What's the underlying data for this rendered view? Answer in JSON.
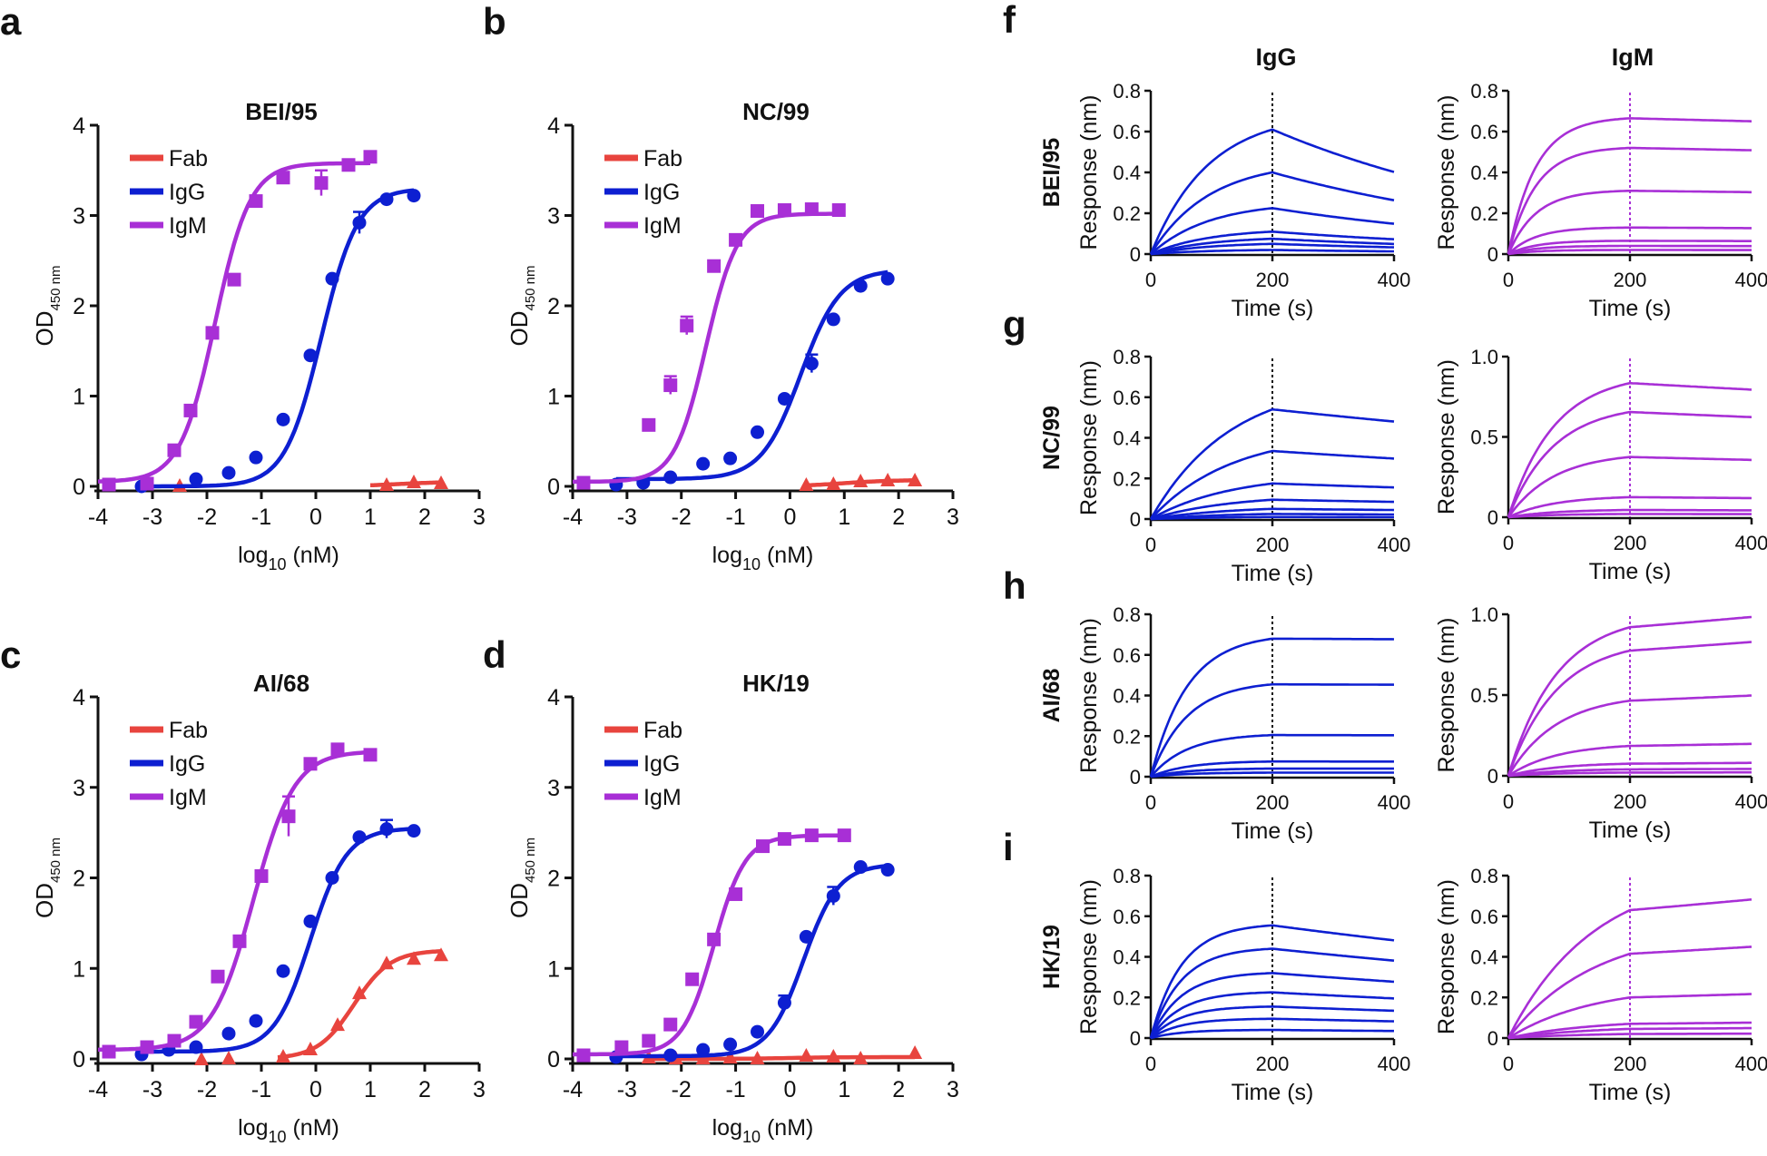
{
  "colors": {
    "fab": "#e8443e",
    "igg": "#0d1fd1",
    "igm": "#a82fd6",
    "axis": "#111111"
  },
  "panel_letters": {
    "a": "a",
    "b": "b",
    "c": "c",
    "d": "d",
    "f": "f",
    "g": "g",
    "h": "h",
    "i": "i"
  },
  "bli_column_titles": {
    "igg": "IgG",
    "igm": "IgM"
  },
  "chart_data": [
    {
      "id": "a",
      "type": "scatter",
      "title": "BEI/95",
      "xlabel": "log10 (nM)",
      "ylabel": "OD450 nm",
      "xlim": [
        -4,
        3
      ],
      "ylim": [
        0,
        4
      ],
      "xticks": [
        "-4",
        "-3",
        "-2",
        "-1",
        "0",
        "1",
        "2",
        "3"
      ],
      "yticks": [
        "0",
        "1",
        "2",
        "3",
        "4"
      ],
      "legend": [
        "Fab",
        "IgG",
        "IgM"
      ],
      "series": [
        {
          "name": "Fab",
          "marker": "triangle",
          "x": [
            -2.5,
            1.3,
            1.8,
            2.3
          ],
          "y": [
            0.0,
            0.01,
            0.04,
            0.03
          ],
          "fit": {
            "bottom": 0.0,
            "top": 0.05,
            "ec50": 1.5,
            "hill": 1.0,
            "from": 1.0,
            "to": 2.3
          }
        },
        {
          "name": "IgG",
          "marker": "circle",
          "x": [
            -3.2,
            -2.2,
            -1.6,
            -1.1,
            -0.6,
            -0.1,
            0.3,
            0.8,
            1.3,
            1.8
          ],
          "y": [
            0.0,
            0.08,
            0.15,
            0.32,
            0.74,
            1.45,
            2.3,
            2.92,
            3.18,
            3.22
          ],
          "err": [
            0,
            0,
            0,
            0,
            0,
            0,
            0,
            0.12,
            0,
            0
          ],
          "fit": {
            "bottom": 0.0,
            "top": 3.3,
            "ec50": 0.1,
            "hill": 1.3,
            "from": -3.2,
            "to": 1.8
          }
        },
        {
          "name": "IgM",
          "marker": "square",
          "x": [
            -3.8,
            -3.1,
            -2.6,
            -2.3,
            -1.9,
            -1.5,
            -1.1,
            -0.6,
            0.1,
            0.6,
            1.0
          ],
          "y": [
            0.02,
            0.03,
            0.4,
            0.84,
            1.7,
            2.29,
            3.16,
            3.42,
            3.36,
            3.56,
            3.65
          ],
          "err": [
            0,
            0,
            0,
            0,
            0,
            0,
            0,
            0,
            0.14,
            0,
            0
          ],
          "fit": {
            "bottom": 0.05,
            "top": 3.58,
            "ec50": -1.85,
            "hill": 1.35,
            "from": -4,
            "to": 1.0
          }
        }
      ]
    },
    {
      "id": "b",
      "type": "scatter",
      "title": "NC/99",
      "xlabel": "log10 (nM)",
      "ylabel": "OD450 nm",
      "xlim": [
        -4,
        3
      ],
      "ylim": [
        0,
        4
      ],
      "xticks": [
        "-4",
        "-3",
        "-2",
        "-1",
        "0",
        "1",
        "2",
        "3"
      ],
      "yticks": [
        "0",
        "1",
        "2",
        "3",
        "4"
      ],
      "legend": [
        "Fab",
        "IgG",
        "IgM"
      ],
      "series": [
        {
          "name": "Fab",
          "marker": "triangle",
          "x": [
            0.3,
            0.8,
            1.3,
            1.8,
            2.3
          ],
          "y": [
            0.01,
            0.02,
            0.05,
            0.06,
            0.06
          ],
          "fit": {
            "bottom": 0.0,
            "top": 0.07,
            "ec50": 1.0,
            "hill": 1.0,
            "from": 0.3,
            "to": 2.3
          }
        },
        {
          "name": "IgG",
          "marker": "circle",
          "x": [
            -3.2,
            -2.7,
            -2.2,
            -1.6,
            -1.1,
            -0.6,
            -0.1,
            0.4,
            0.8,
            1.3,
            1.8
          ],
          "y": [
            0.02,
            0.04,
            0.1,
            0.25,
            0.31,
            0.6,
            0.97,
            1.36,
            1.85,
            2.22,
            2.3
          ],
          "err": [
            0,
            0,
            0,
            0,
            0,
            0,
            0,
            0.1,
            0,
            0,
            0
          ],
          "fit": {
            "bottom": 0.08,
            "top": 2.4,
            "ec50": 0.2,
            "hill": 1.2,
            "from": -3.2,
            "to": 1.8
          }
        },
        {
          "name": "IgM",
          "marker": "square",
          "x": [
            -3.8,
            -2.6,
            -2.2,
            -1.9,
            -1.4,
            -1.0,
            -0.6,
            -0.1,
            0.4,
            0.9
          ],
          "y": [
            0.04,
            0.68,
            1.12,
            1.78,
            2.44,
            2.73,
            3.05,
            3.06,
            3.07,
            3.06
          ],
          "err": [
            0,
            0,
            0.1,
            0.1,
            0,
            0,
            0,
            0,
            0,
            0
          ],
          "fit": {
            "bottom": 0.05,
            "top": 3.02,
            "ec50": -1.55,
            "hill": 1.5,
            "from": -4,
            "to": 0.9
          }
        }
      ]
    },
    {
      "id": "c",
      "type": "scatter",
      "title": "AI/68",
      "xlabel": "log10 (nM)",
      "ylabel": "OD450 nm",
      "xlim": [
        -4,
        3
      ],
      "ylim": [
        0,
        4
      ],
      "xticks": [
        "-4",
        "-3",
        "-2",
        "-1",
        "0",
        "1",
        "2",
        "3"
      ],
      "yticks": [
        "0",
        "1",
        "2",
        "3",
        "4"
      ],
      "legend": [
        "Fab",
        "IgG",
        "IgM"
      ],
      "series": [
        {
          "name": "Fab",
          "marker": "triangle",
          "x": [
            -2.1,
            -1.6,
            -0.6,
            -0.1,
            0.4,
            0.8,
            1.3,
            1.8,
            2.3
          ],
          "y": [
            -0.01,
            0.0,
            0.02,
            0.1,
            0.37,
            0.72,
            1.05,
            1.1,
            1.14
          ],
          "fit": {
            "bottom": 0.0,
            "top": 1.2,
            "ec50": 0.7,
            "hill": 1.3,
            "from": -0.7,
            "to": 2.3
          }
        },
        {
          "name": "IgG",
          "marker": "circle",
          "x": [
            -3.2,
            -2.7,
            -2.2,
            -1.6,
            -1.1,
            -0.6,
            -0.1,
            0.3,
            0.8,
            1.3,
            1.8
          ],
          "y": [
            0.05,
            0.1,
            0.13,
            0.28,
            0.42,
            0.97,
            1.52,
            2.0,
            2.45,
            2.54,
            2.52
          ],
          "err": [
            0,
            0,
            0,
            0,
            0,
            0,
            0,
            0,
            0,
            0.1,
            0
          ],
          "fit": {
            "bottom": 0.08,
            "top": 2.55,
            "ec50": -0.1,
            "hill": 1.3,
            "from": -3.2,
            "to": 1.8
          }
        },
        {
          "name": "IgM",
          "marker": "square",
          "x": [
            -3.8,
            -3.1,
            -2.6,
            -2.2,
            -1.8,
            -1.4,
            -1.0,
            -0.5,
            -0.1,
            0.4,
            1.0
          ],
          "y": [
            0.08,
            0.13,
            0.2,
            0.41,
            0.91,
            1.3,
            2.02,
            2.68,
            3.26,
            3.42,
            3.36
          ],
          "err": [
            0,
            0,
            0,
            0,
            0,
            0,
            0,
            0.22,
            0,
            0,
            0
          ],
          "fit": {
            "bottom": 0.1,
            "top": 3.4,
            "ec50": -1.15,
            "hill": 1.15,
            "from": -4,
            "to": 1.0
          }
        }
      ]
    },
    {
      "id": "d",
      "type": "scatter",
      "title": "HK/19",
      "xlabel": "log10 (nM)",
      "ylabel": "OD450 nm",
      "xlim": [
        -4,
        3
      ],
      "ylim": [
        0,
        4
      ],
      "xticks": [
        "-4",
        "-3",
        "-2",
        "-1",
        "0",
        "1",
        "2",
        "3"
      ],
      "yticks": [
        "0",
        "1",
        "2",
        "3",
        "4"
      ],
      "legend": [
        "Fab",
        "IgG",
        "IgM"
      ],
      "series": [
        {
          "name": "Fab",
          "marker": "triangle",
          "x": [
            -2.6,
            -2.1,
            -1.6,
            -1.1,
            -0.6,
            0.3,
            0.8,
            1.3,
            2.3
          ],
          "y": [
            0.01,
            0.0,
            0.0,
            0.01,
            0.0,
            0.03,
            0.02,
            0.0,
            0.06
          ],
          "fit": {
            "bottom": 0.0,
            "top": 0.02,
            "ec50": 0.0,
            "hill": 1.0,
            "from": -2.6,
            "to": 2.3
          }
        },
        {
          "name": "IgG",
          "marker": "circle",
          "x": [
            -3.2,
            -2.2,
            -1.6,
            -1.1,
            -0.6,
            -0.1,
            0.3,
            0.8,
            1.3,
            1.8
          ],
          "y": [
            0.02,
            0.04,
            0.1,
            0.16,
            0.3,
            0.62,
            1.35,
            1.8,
            2.12,
            2.09
          ],
          "err": [
            0,
            0,
            0,
            0,
            0,
            0.08,
            0,
            0.1,
            0,
            0
          ],
          "fit": {
            "bottom": 0.03,
            "top": 2.15,
            "ec50": 0.25,
            "hill": 1.35,
            "from": -3.2,
            "to": 1.8
          }
        },
        {
          "name": "IgM",
          "marker": "square",
          "x": [
            -3.8,
            -3.1,
            -2.6,
            -2.2,
            -1.8,
            -1.4,
            -1.0,
            -0.5,
            -0.1,
            0.4,
            1.0
          ],
          "y": [
            0.04,
            0.13,
            0.2,
            0.38,
            0.88,
            1.32,
            1.82,
            2.35,
            2.43,
            2.47,
            2.47
          ],
          "err": [
            0,
            0,
            0,
            0,
            0,
            0,
            0,
            0.06,
            0,
            0,
            0
          ],
          "fit": {
            "bottom": 0.05,
            "top": 2.47,
            "ec50": -1.4,
            "hill": 1.5,
            "from": -4,
            "to": 1.0
          }
        }
      ]
    },
    {
      "id": "f-igg",
      "type": "line",
      "row_label": "BEI/95",
      "xlabel": "Time (s)",
      "ylabel": "Response (nm)",
      "xlim": [
        0,
        400
      ],
      "ylim": [
        0,
        0.8
      ],
      "xticks": [
        "0",
        "200",
        "400"
      ],
      "yticks": [
        "0",
        "0.2",
        "0.4",
        "0.6",
        "0.8"
      ],
      "series_color": "igg",
      "dissociation_start": 200,
      "kon_tau": 95,
      "koff_tau": 480,
      "plateaus": [
        0.61,
        0.4,
        0.225,
        0.11,
        0.075,
        0.05,
        0.02
      ]
    },
    {
      "id": "f-igm",
      "type": "line",
      "row_label": "",
      "xlabel": "Time (s)",
      "ylabel": "Response (nm)",
      "xlim": [
        0,
        400
      ],
      "ylim": [
        0,
        0.8
      ],
      "xticks": [
        "0",
        "200",
        "400"
      ],
      "yticks": [
        "0",
        "0.2",
        "0.4",
        "0.6",
        "0.8"
      ],
      "series_color": "igm",
      "dissociation_start": 200,
      "kon_tau": 45,
      "koff_tau": 9000,
      "plateaus": [
        0.665,
        0.52,
        0.31,
        0.13,
        0.065,
        0.04,
        0.02
      ]
    },
    {
      "id": "g-igg",
      "type": "line",
      "row_label": "NC/99",
      "xlabel": "Time (s)",
      "ylabel": "Response (nm)",
      "xlim": [
        0,
        400
      ],
      "ylim": [
        0,
        0.8
      ],
      "xticks": [
        "0",
        "200",
        "400"
      ],
      "yticks": [
        "0",
        "0.2",
        "0.4",
        "0.6",
        "0.8"
      ],
      "series_color": "igg",
      "dissociation_start": 200,
      "kon_tau": 130,
      "koff_tau": 1700,
      "plateaus": [
        0.54,
        0.335,
        0.175,
        0.095,
        0.05,
        0.025,
        0.01
      ]
    },
    {
      "id": "g-igm",
      "type": "line",
      "row_label": "",
      "xlabel": "Time (s)",
      "ylabel": "Response (nm)",
      "xlim": [
        0,
        400
      ],
      "ylim": [
        0,
        1.0
      ],
      "xticks": [
        "0",
        "200",
        "400"
      ],
      "yticks": [
        "0",
        "0.5",
        "1.0"
      ],
      "series_color": "igm",
      "dissociation_start": 200,
      "kon_tau": 75,
      "koff_tau": 4000,
      "plateaus": [
        0.835,
        0.655,
        0.375,
        0.125,
        0.045,
        0.02
      ]
    },
    {
      "id": "h-igg",
      "type": "line",
      "row_label": "AI/68",
      "xlabel": "Time (s)",
      "ylabel": "Response (nm)",
      "xlim": [
        0,
        400
      ],
      "ylim": [
        0,
        0.8
      ],
      "xticks": [
        "0",
        "200",
        "400"
      ],
      "yticks": [
        "0",
        "0.2",
        "0.4",
        "0.6",
        "0.8"
      ],
      "series_color": "igg",
      "dissociation_start": 200,
      "kon_tau": 60,
      "koff_tau": 50000,
      "plateaus": [
        0.68,
        0.455,
        0.205,
        0.075,
        0.04,
        0.02
      ]
    },
    {
      "id": "h-igm",
      "type": "line",
      "row_label": "",
      "xlabel": "Time (s)",
      "ylabel": "Response (nm)",
      "xlim": [
        0,
        400
      ],
      "ylim": [
        0,
        1.0
      ],
      "xticks": [
        "0",
        "200",
        "400"
      ],
      "yticks": [
        "0",
        "0.5",
        "1.0"
      ],
      "series_color": "igm",
      "dissociation_start": 200,
      "kon_tau": 80,
      "koff_tau": -3000,
      "plateaus": [
        0.92,
        0.775,
        0.465,
        0.185,
        0.075,
        0.04,
        0.02
      ]
    },
    {
      "id": "i-igg",
      "type": "line",
      "row_label": "HK/19",
      "xlabel": "Time (s)",
      "ylabel": "Response (nm)",
      "xlim": [
        0,
        400
      ],
      "ylim": [
        0,
        0.8
      ],
      "xticks": [
        "0",
        "200",
        "400"
      ],
      "yticks": [
        "0",
        "0.2",
        "0.4",
        "0.6",
        "0.8"
      ],
      "series_color": "igg",
      "dissociation_start": 200,
      "kon_tau": 50,
      "koff_tau": 1400,
      "plateaus": [
        0.555,
        0.44,
        0.32,
        0.225,
        0.155,
        0.095,
        0.04
      ]
    },
    {
      "id": "i-igm",
      "type": "line",
      "row_label": "",
      "xlabel": "Time (s)",
      "ylabel": "Response (nm)",
      "xlim": [
        0,
        400
      ],
      "ylim": [
        0,
        0.8
      ],
      "xticks": [
        "0",
        "200",
        "400"
      ],
      "yticks": [
        "0",
        "0.2",
        "0.4",
        "0.6",
        "0.8"
      ],
      "series_color": "igm",
      "dissociation_start": 200,
      "kon_tau": 140,
      "koff_tau": -2500,
      "plateaus": [
        0.63,
        0.415,
        0.2,
        0.07,
        0.045,
        0.02
      ]
    }
  ]
}
